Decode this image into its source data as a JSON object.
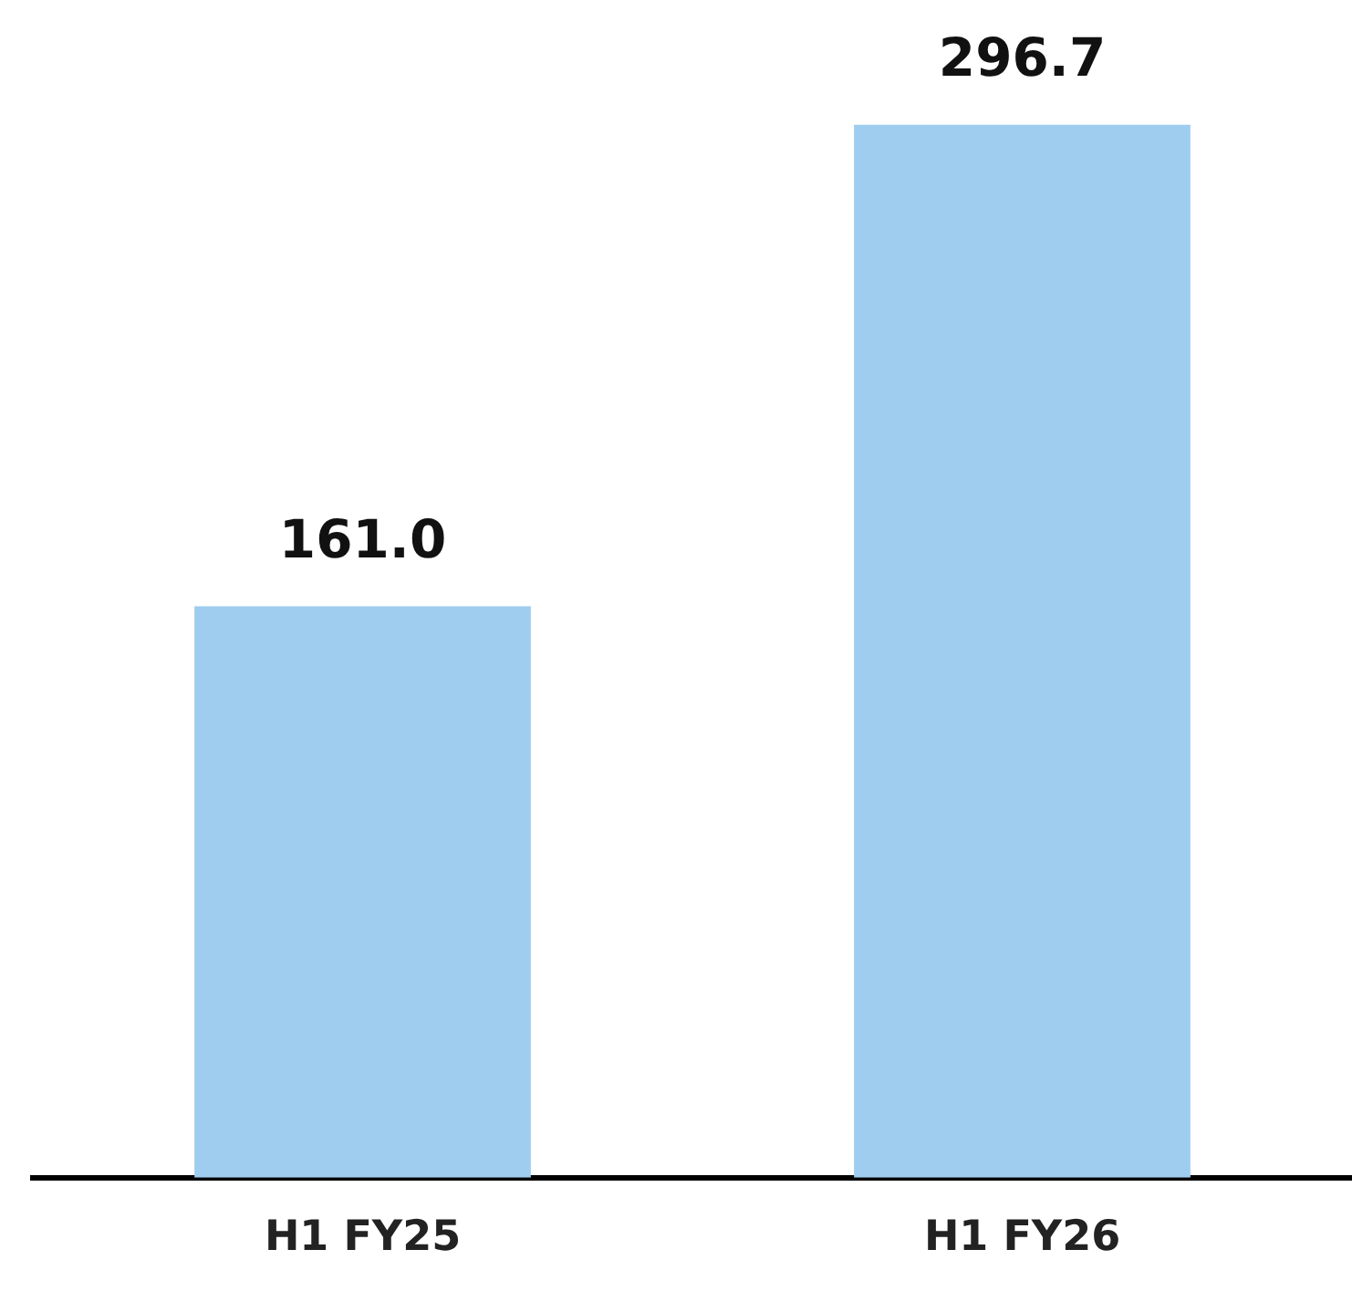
{
  "chart_data": {
    "type": "bar",
    "categories": [
      "H1 FY25",
      "H1 FY26"
    ],
    "values": [
      161.0,
      296.7
    ],
    "color": "#9ecdef",
    "data_labels": true,
    "value_labels": [
      "161.0",
      "296.7"
    ],
    "grid": false,
    "legend": false,
    "tick_labels": "x"
  }
}
